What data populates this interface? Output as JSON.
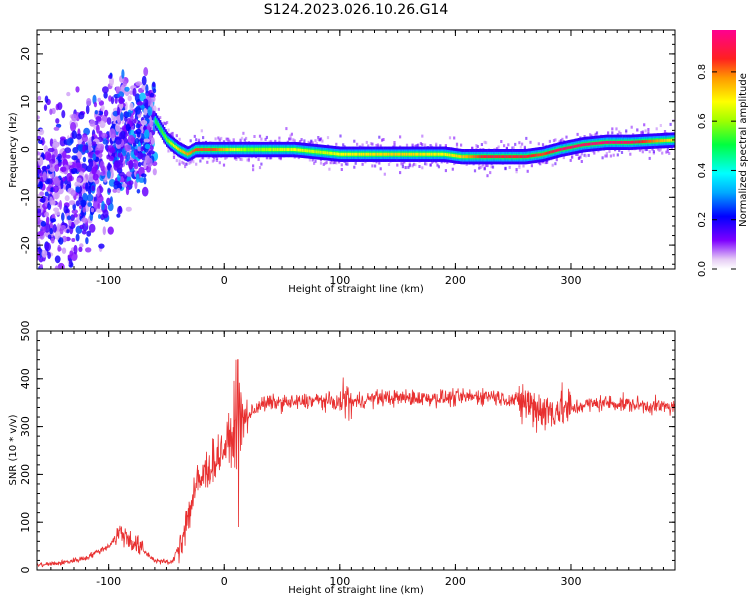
{
  "title": "S124.2023.026.10.26.G14",
  "chart_data": [
    {
      "type": "heatmap",
      "title": "S124.2023.026.10.26.G14",
      "xlabel": "Height of straight line (km)",
      "ylabel": "Frequency (Hz)",
      "xlim": [
        -162,
        390
      ],
      "ylim": [
        -25,
        25
      ],
      "xticks": [
        -100,
        0,
        100,
        200,
        300
      ],
      "yticks": [
        -20,
        -10,
        0,
        10,
        20
      ],
      "grid": false,
      "colorbar": {
        "label": "Normalized spectral amplitude",
        "ticks": [
          "0.0",
          "0.2",
          "0.4",
          "0.6",
          "0.8"
        ],
        "range": [
          0,
          0.97
        ],
        "colormap": "white-purple-blue-cyan-green-yellow-orange-red-pink"
      },
      "ridge": {
        "x": [
          -60,
          -50,
          -40,
          -32,
          -25,
          -10,
          20,
          60,
          80,
          100,
          150,
          190,
          205,
          225,
          245,
          260,
          275,
          290,
          310,
          330,
          350,
          390
        ],
        "freq": [
          6,
          2,
          0,
          -1,
          0,
          0,
          0,
          0,
          -0.5,
          -1,
          -1,
          -1,
          -1.5,
          -1.5,
          -1.5,
          -1.5,
          -1,
          0,
          1,
          1.5,
          1.5,
          2
        ],
        "amplitude": [
          0.5,
          0.6,
          0.75,
          0.8,
          0.85,
          0.85,
          0.6,
          0.7,
          0.65,
          0.7,
          0.75,
          0.7,
          0.75,
          0.9,
          0.9,
          0.9,
          0.85,
          0.95,
          0.95,
          0.97,
          0.95,
          0.7
        ]
      },
      "noise_region_x": [
        -162,
        -60
      ]
    },
    {
      "type": "line",
      "xlabel": "Height of straight line (km)",
      "ylabel": "SNR (10 * v/v)",
      "xlim": [
        -162,
        390
      ],
      "ylim": [
        0,
        500
      ],
      "xticks": [
        -100,
        0,
        100,
        200,
        300
      ],
      "yticks": [
        0,
        100,
        200,
        300,
        400,
        500
      ],
      "grid": false,
      "color": "#e83030",
      "series": [
        {
          "x": [
            -162,
            -140,
            -120,
            -100,
            -90,
            -80,
            -60,
            -45,
            -35,
            -25,
            -15,
            -5,
            5,
            12,
            20,
            30,
            40,
            60,
            80,
            100,
            105,
            110,
            130,
            160,
            200,
            230,
            260,
            280,
            290,
            300,
            310,
            330,
            360,
            390
          ],
          "values": [
            10,
            15,
            25,
            50,
            80,
            60,
            20,
            15,
            80,
            170,
            210,
            240,
            270,
            300,
            320,
            345,
            350,
            350,
            355,
            350,
            360,
            350,
            360,
            360,
            360,
            365,
            350,
            330,
            340,
            335,
            345,
            350,
            345,
            340
          ]
        }
      ]
    }
  ]
}
